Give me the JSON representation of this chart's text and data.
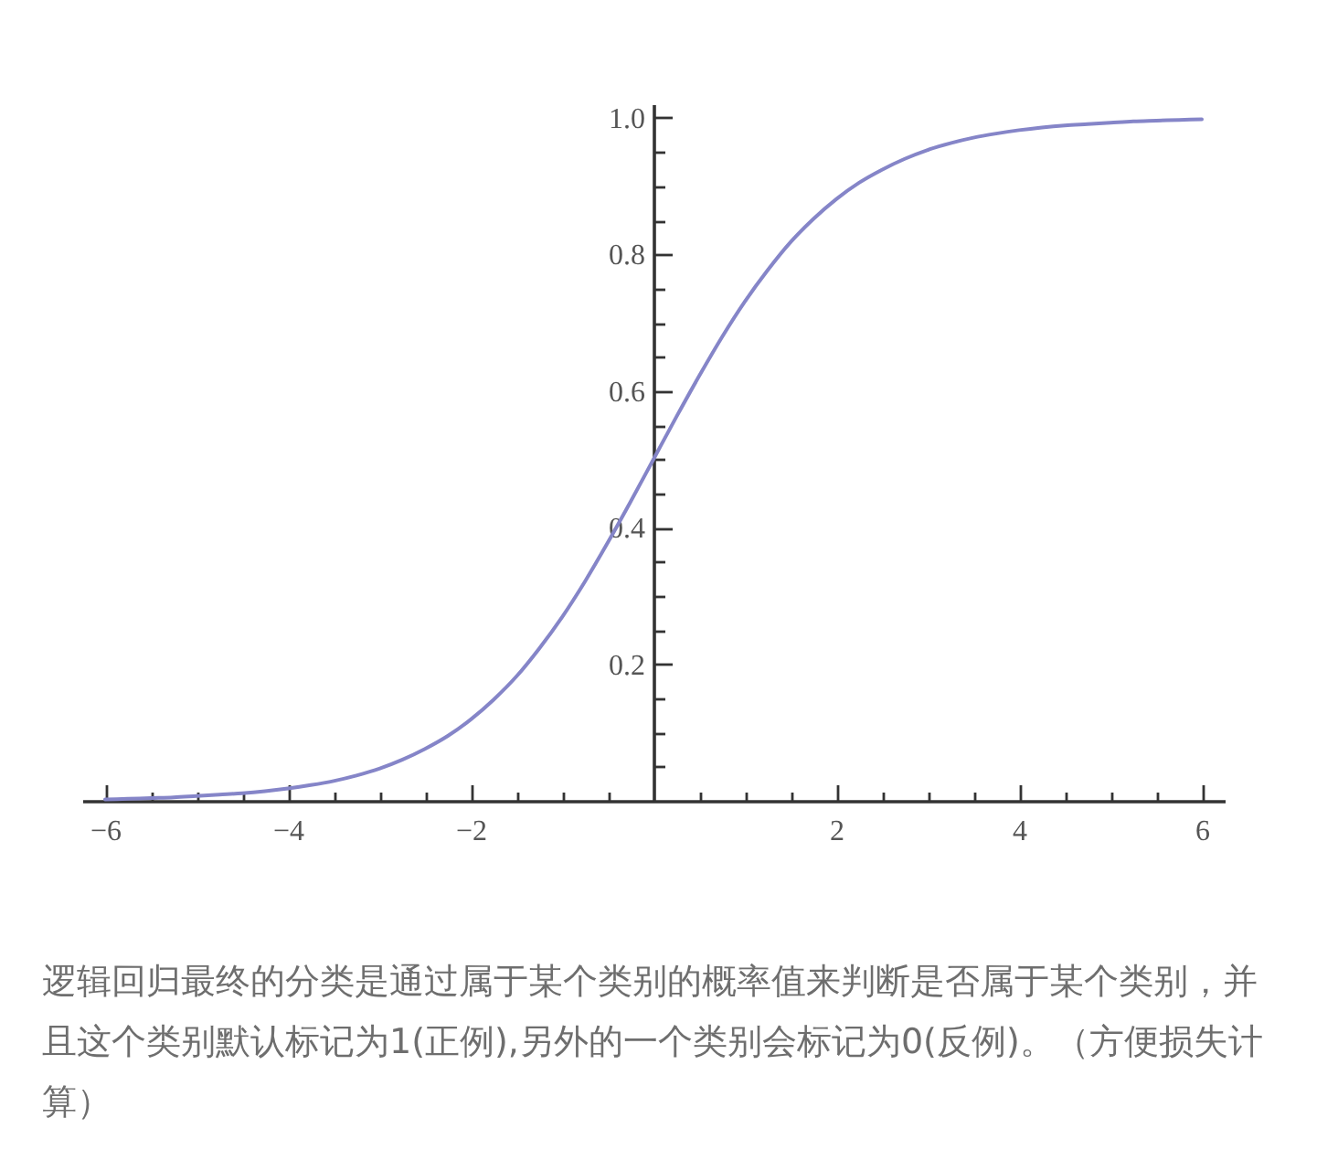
{
  "chart_data": {
    "type": "line",
    "x": [
      -6,
      -5.75,
      -5.5,
      -5.25,
      -5,
      -4.75,
      -4.5,
      -4.25,
      -4,
      -3.75,
      -3.5,
      -3.25,
      -3,
      -2.75,
      -2.5,
      -2.25,
      -2,
      -1.75,
      -1.5,
      -1.25,
      -1,
      -0.75,
      -0.5,
      -0.25,
      0,
      0.25,
      0.5,
      0.75,
      1,
      1.25,
      1.5,
      1.75,
      2,
      2.25,
      2.5,
      2.75,
      3,
      3.25,
      3.5,
      3.75,
      4,
      4.25,
      4.5,
      4.75,
      5,
      5.25,
      5.5,
      5.75,
      6
    ],
    "series": [
      {
        "color": "#8585c8",
        "values": [
          0.002,
          0.003,
          0.004,
          0.005,
          0.007,
          0.009,
          0.011,
          0.014,
          0.018,
          0.023,
          0.029,
          0.037,
          0.047,
          0.06,
          0.076,
          0.095,
          0.119,
          0.148,
          0.182,
          0.223,
          0.269,
          0.321,
          0.378,
          0.438,
          0.5,
          0.562,
          0.622,
          0.679,
          0.731,
          0.777,
          0.818,
          0.852,
          0.881,
          0.905,
          0.924,
          0.94,
          0.953,
          0.963,
          0.971,
          0.977,
          0.982,
          0.986,
          0.989,
          0.991,
          0.993,
          0.995,
          0.996,
          0.997,
          0.998
        ]
      }
    ],
    "xlim": [
      -6.25,
      6.25
    ],
    "ylim": [
      0,
      1.02
    ],
    "xticks": [
      -6,
      {
        "value": -5.5,
        "label": null
      },
      {
        "value": -5,
        "label": null
      },
      {
        "value": -4.5,
        "label": null
      },
      -4,
      {
        "value": -3.5,
        "label": null
      },
      {
        "value": -3,
        "label": null
      },
      {
        "value": -2.5,
        "label": null
      },
      -2,
      {
        "value": -1.5,
        "label": null
      },
      {
        "value": -1,
        "label": null
      },
      {
        "value": -0.5,
        "label": null
      },
      {
        "value": 0.5,
        "label": null
      },
      {
        "value": 1,
        "label": null
      },
      {
        "value": 1.5,
        "label": null
      },
      2,
      {
        "value": 2.5,
        "label": null
      },
      {
        "value": 3,
        "label": null
      },
      {
        "value": 3.5,
        "label": null
      },
      4,
      {
        "value": 4.5,
        "label": null
      },
      {
        "value": 5,
        "label": null
      },
      {
        "value": 5.5,
        "label": null
      },
      6
    ],
    "yticks": [
      {
        "value": 0.05,
        "label": null
      },
      {
        "value": 0.1,
        "label": null
      },
      {
        "value": 0.15,
        "label": null
      },
      0.2,
      {
        "value": 0.25,
        "label": null
      },
      {
        "value": 0.3,
        "label": null
      },
      {
        "value": 0.35,
        "label": null
      },
      0.4,
      {
        "value": 0.45,
        "label": null
      },
      {
        "value": 0.5,
        "label": null
      },
      {
        "value": 0.55,
        "label": null
      },
      0.6,
      {
        "value": 0.65,
        "label": null
      },
      {
        "value": 0.7,
        "label": null
      },
      {
        "value": 0.75,
        "label": null
      },
      0.8,
      {
        "value": 0.85,
        "label": null
      },
      {
        "value": 0.9,
        "label": null
      },
      {
        "value": 0.95,
        "label": null
      },
      {
        "value": 1,
        "label": "1.0"
      }
    ],
    "annotations": [
      "逻辑回归最终的分类是通过属于某个类别的概率值来判断是否属于某个类别，并且这个类别默认标记为1(正例),另外的一个类别会标记为0(反例)。（方便损失计算）"
    ]
  }
}
